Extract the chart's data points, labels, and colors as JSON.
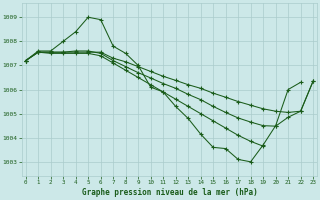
{
  "title": "Graphe pression niveau de la mer (hPa)",
  "bg_color": "#cce8e8",
  "grid_color": "#aacccc",
  "line_color": "#1a5c1a",
  "ylim": [
    1002.4,
    1009.6
  ],
  "xlim": [
    -0.3,
    23.3
  ],
  "yticks": [
    1003,
    1004,
    1005,
    1006,
    1007,
    1008,
    1009
  ],
  "xticks": [
    0,
    1,
    2,
    3,
    4,
    5,
    6,
    7,
    8,
    9,
    10,
    11,
    12,
    13,
    14,
    15,
    16,
    17,
    18,
    19,
    20,
    21,
    22,
    23
  ],
  "series": [
    {
      "x": [
        0,
        1,
        2,
        3,
        4,
        5,
        6,
        7,
        8,
        9,
        10,
        11,
        12,
        13,
        14,
        15,
        16,
        17,
        18,
        19,
        20,
        21,
        22
      ],
      "y": [
        1007.2,
        1007.6,
        1007.6,
        1008.0,
        1008.4,
        1009.0,
        1008.9,
        1007.8,
        1007.5,
        1007.0,
        1006.1,
        1005.9,
        1005.3,
        1004.8,
        1004.15,
        1003.6,
        1003.55,
        1003.1,
        1003.0,
        1003.7,
        1004.5,
        1006.0,
        1006.3
      ]
    },
    {
      "x": [
        0,
        1,
        2,
        3,
        4,
        5,
        6,
        7,
        8,
        9,
        10,
        11,
        12,
        13,
        14,
        15,
        16,
        17,
        18,
        19,
        20,
        21,
        22,
        23
      ],
      "y": [
        1007.2,
        1007.55,
        1007.55,
        1007.55,
        1007.55,
        1007.55,
        1007.55,
        1007.3,
        1007.15,
        1006.95,
        1006.75,
        1006.55,
        1006.38,
        1006.2,
        1006.05,
        1005.85,
        1005.68,
        1005.5,
        1005.35,
        1005.2,
        1005.1,
        1005.05,
        1005.1,
        1006.35
      ]
    },
    {
      "x": [
        0,
        1,
        2,
        3,
        4,
        5,
        6,
        7,
        8,
        9,
        10,
        11,
        12,
        13,
        14,
        15,
        16,
        17,
        18,
        19,
        20,
        21,
        22,
        23
      ],
      "y": [
        1007.2,
        1007.55,
        1007.55,
        1007.55,
        1007.6,
        1007.6,
        1007.5,
        1007.2,
        1006.95,
        1006.7,
        1006.48,
        1006.25,
        1006.05,
        1005.8,
        1005.58,
        1005.3,
        1005.05,
        1004.82,
        1004.65,
        1004.5,
        1004.48,
        1004.85,
        1005.1,
        1006.35
      ]
    },
    {
      "x": [
        0,
        1,
        2,
        3,
        4,
        5,
        6,
        7,
        8,
        9,
        10,
        11,
        12,
        13,
        14,
        15,
        16,
        17,
        18,
        19,
        20,
        21,
        22,
        23
      ],
      "y": [
        1007.2,
        1007.55,
        1007.5,
        1007.5,
        1007.5,
        1007.5,
        1007.4,
        1007.1,
        1006.8,
        1006.5,
        1006.2,
        1005.9,
        1005.6,
        1005.3,
        1005.0,
        1004.7,
        1004.4,
        1004.1,
        1003.85,
        1003.65,
        null,
        null,
        null,
        null
      ]
    }
  ]
}
